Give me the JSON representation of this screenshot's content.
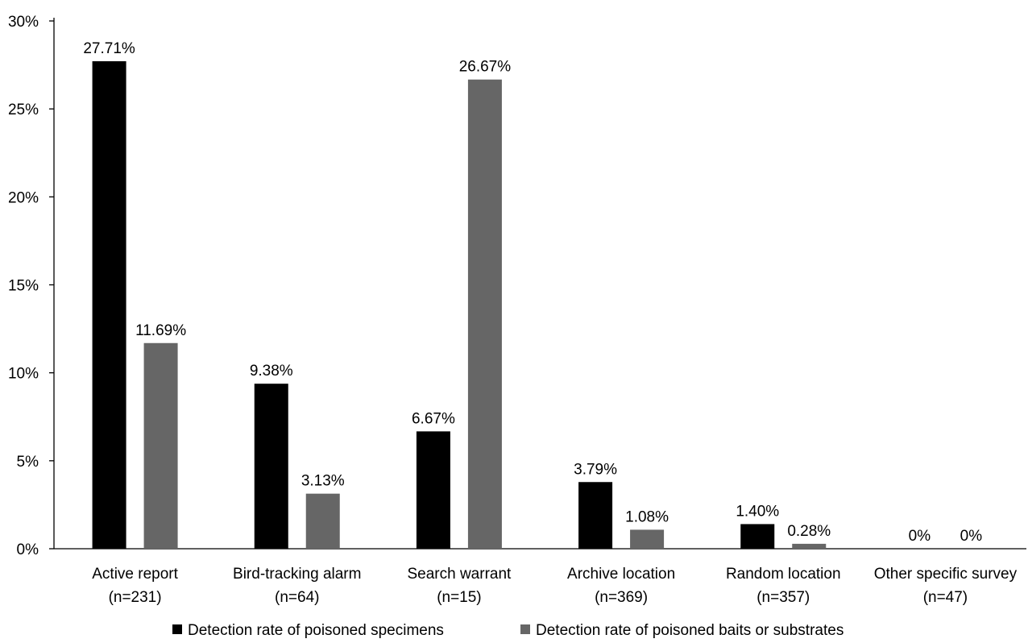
{
  "chart_data": {
    "type": "bar",
    "title": "",
    "xlabel": "",
    "ylabel": "",
    "ylim": [
      0,
      30
    ],
    "yticks": [
      "0%",
      "5%",
      "10%",
      "15%",
      "20%",
      "25%",
      "30%"
    ],
    "ytick_values": [
      0,
      5,
      10,
      15,
      20,
      25,
      30
    ],
    "grid": false,
    "legend_position": "bottom",
    "categories": [
      {
        "name": "Active report",
        "n": "(n=231)"
      },
      {
        "name": "Bird-tracking alarm",
        "n": "(n=64)"
      },
      {
        "name": "Search warrant",
        "n": "(n=15)"
      },
      {
        "name": "Archive location",
        "n": "(n=369)"
      },
      {
        "name": "Random location",
        "n": "(n=357)"
      },
      {
        "name": "Other specific survey",
        "n": "(n=47)"
      }
    ],
    "series": [
      {
        "name": "Detection rate of poisoned specimens",
        "color": "#000000",
        "values": [
          27.71,
          9.38,
          6.67,
          3.79,
          1.4,
          0
        ],
        "labels": [
          "27.71%",
          "9.38%",
          "6.67%",
          "3.79%",
          "1.40%",
          "0%"
        ]
      },
      {
        "name": "Detection rate of poisoned baits or substrates",
        "color": "#666666",
        "values": [
          11.69,
          3.13,
          26.67,
          1.08,
          0.28,
          0
        ],
        "labels": [
          "11.69%",
          "3.13%",
          "26.67%",
          "1.08%",
          "0.28%",
          "0%"
        ]
      }
    ]
  }
}
